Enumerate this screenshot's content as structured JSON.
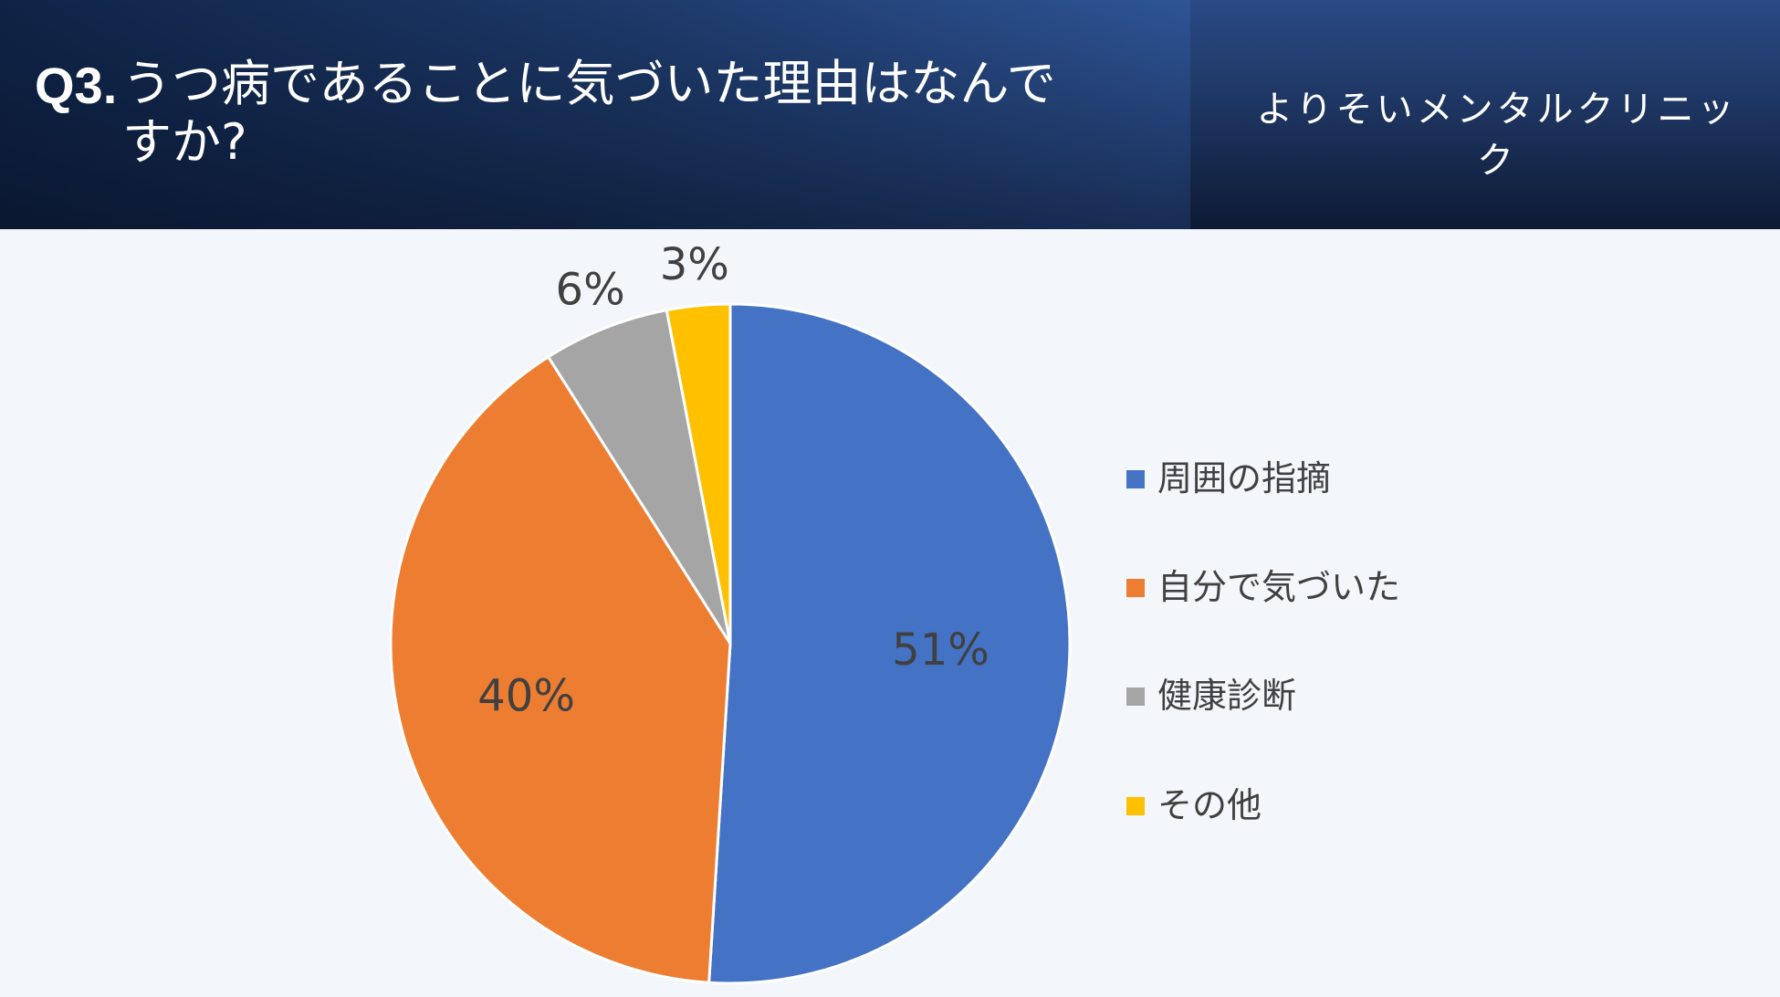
{
  "header": {
    "question_number": "Q3.",
    "question_text": "うつ病であることに気づいた理由はなんですか?",
    "clinic_name": "よりそいメンタルクリニック"
  },
  "chart_data": {
    "type": "pie",
    "title": "",
    "legend_position": "right",
    "slices": [
      {
        "label": "周囲の指摘",
        "value": 51,
        "display": "51%",
        "color": "#4472c4"
      },
      {
        "label": "自分で気づいた",
        "value": 40,
        "display": "40%",
        "color": "#ed7d31"
      },
      {
        "label": "健康診断",
        "value": 6,
        "display": "6%",
        "color": "#a5a5a5"
      },
      {
        "label": "その他",
        "value": 3,
        "display": "3%",
        "color": "#ffc000"
      }
    ]
  }
}
